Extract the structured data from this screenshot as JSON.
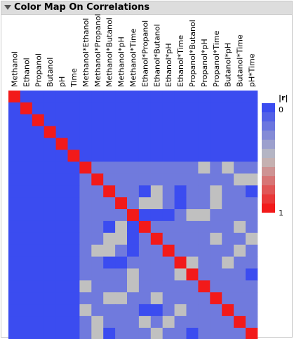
{
  "panel": {
    "title": "Color Map On Correlations"
  },
  "chart_data": {
    "type": "heatmap",
    "variables": [
      "Methanol",
      "Ethanol",
      "Propanol",
      "Butanol",
      "pH",
      "Time",
      "Methanol*Ethanol",
      "Methanol*Propanol",
      "Methanol*Butanol",
      "Methanol*pH",
      "Methanol*Time",
      "Ethanol*Propanol",
      "Ethanol*Butanol",
      "Ethanol*pH",
      "Ethanol*Time",
      "Propanol*Butanol",
      "Propanol*pH",
      "Propanol*Time",
      "Butanol*pH",
      "Butanol*Time",
      "pH*Time"
    ],
    "abs_r_matrix": [
      [
        1,
        0,
        0,
        0,
        0,
        0,
        0,
        0,
        0,
        0,
        0,
        0,
        0,
        0,
        0,
        0,
        0,
        0,
        0,
        0,
        0
      ],
      [
        0,
        1,
        0,
        0,
        0,
        0,
        0,
        0,
        0,
        0,
        0,
        0,
        0,
        0,
        0,
        0,
        0,
        0,
        0,
        0,
        0
      ],
      [
        0,
        0,
        1,
        0,
        0,
        0,
        0,
        0,
        0,
        0,
        0,
        0,
        0,
        0,
        0,
        0,
        0,
        0,
        0,
        0,
        0
      ],
      [
        0,
        0,
        0,
        1,
        0,
        0,
        0,
        0,
        0,
        0,
        0,
        0,
        0,
        0,
        0,
        0,
        0,
        0,
        0,
        0,
        0
      ],
      [
        0,
        0,
        0,
        0,
        1,
        0,
        0,
        0,
        0,
        0,
        0,
        0,
        0,
        0,
        0,
        0,
        0,
        0,
        0,
        0,
        0
      ],
      [
        0,
        0,
        0,
        0,
        0,
        1,
        0,
        0,
        0,
        0,
        0,
        0,
        0,
        0,
        0,
        0,
        0,
        0,
        0,
        0,
        0
      ],
      [
        0,
        0,
        0,
        0,
        0,
        0,
        1,
        0.2,
        0.2,
        0.2,
        0.2,
        0.2,
        0.2,
        0.2,
        0.2,
        0.2,
        0.5,
        0.2,
        0.5,
        0.2,
        0.2
      ],
      [
        0,
        0,
        0,
        0,
        0,
        0,
        0.2,
        1,
        0.2,
        0.2,
        0.2,
        0.2,
        0.2,
        0.2,
        0.2,
        0.2,
        0.2,
        0.2,
        0.2,
        0.5,
        0.5
      ],
      [
        0,
        0,
        0,
        0,
        0,
        0,
        0.2,
        0.2,
        1,
        0.2,
        0.2,
        0,
        0.5,
        0.2,
        0,
        0.2,
        0.2,
        0.5,
        0.2,
        0.2,
        0
      ],
      [
        0,
        0,
        0,
        0,
        0,
        0,
        0.2,
        0.2,
        0.2,
        1,
        0.2,
        0.5,
        0.5,
        0.2,
        0,
        0.2,
        0.2,
        0.5,
        0.2,
        0.2,
        0.2
      ],
      [
        0,
        0,
        0,
        0,
        0,
        0,
        0.2,
        0.2,
        0.2,
        0.2,
        1,
        0,
        0,
        0,
        0.2,
        0.5,
        0.5,
        0.2,
        0.2,
        0.2,
        0.2
      ],
      [
        0,
        0,
        0,
        0,
        0,
        0,
        0.2,
        0.2,
        0,
        0.5,
        0,
        1,
        0.2,
        0.2,
        0.2,
        0.2,
        0.2,
        0.2,
        0.2,
        0.5,
        0.2
      ],
      [
        0,
        0,
        0,
        0,
        0,
        0,
        0.2,
        0.2,
        0.5,
        0.5,
        0,
        0.2,
        1,
        0.2,
        0.2,
        0.2,
        0.2,
        0.5,
        0.2,
        0.2,
        0.5
      ],
      [
        0,
        0,
        0,
        0,
        0,
        0,
        0.2,
        0.5,
        0.5,
        0.2,
        0,
        0.2,
        0.2,
        1,
        0.2,
        0.2,
        0.2,
        0.2,
        0.2,
        0.5,
        0.2
      ],
      [
        0,
        0,
        0,
        0,
        0,
        0,
        0.2,
        0.2,
        0,
        0,
        0.2,
        0.2,
        0.2,
        0.2,
        1,
        0.5,
        0.2,
        0.2,
        0.5,
        0.2,
        0.2
      ],
      [
        0,
        0,
        0,
        0,
        0,
        0,
        0.2,
        0.2,
        0.2,
        0.2,
        0.5,
        0.2,
        0.2,
        0.2,
        0.5,
        1,
        0.2,
        0.2,
        0.2,
        0.2,
        0
      ],
      [
        0,
        0,
        0,
        0,
        0,
        0,
        0.5,
        0.2,
        0.2,
        0.2,
        0.5,
        0.2,
        0.2,
        0.2,
        0.2,
        0.2,
        1,
        0.2,
        0.2,
        0.2,
        0.2
      ],
      [
        0,
        0,
        0,
        0,
        0,
        0,
        0.2,
        0.2,
        0.5,
        0.5,
        0.2,
        0.2,
        0.5,
        0.2,
        0.2,
        0.2,
        0.2,
        1,
        0.2,
        0.2,
        0.2
      ],
      [
        0,
        0,
        0,
        0,
        0,
        0,
        0.5,
        0.2,
        0.2,
        0.2,
        0.2,
        0,
        0,
        0.2,
        0.5,
        0.2,
        0.2,
        0.2,
        1,
        0.2,
        0.2
      ],
      [
        0,
        0,
        0,
        0,
        0,
        0,
        0.2,
        0.5,
        0.2,
        0.2,
        0.2,
        0.5,
        0.2,
        0.5,
        0.2,
        0.2,
        0.2,
        0.2,
        0.2,
        1,
        0.2
      ],
      [
        0,
        0,
        0,
        0,
        0,
        0,
        0.2,
        0.5,
        0,
        0.2,
        0.2,
        0.2,
        0.5,
        0.2,
        0.2,
        0,
        0.2,
        0.2,
        0.2,
        0.2,
        1
      ]
    ],
    "legend": {
      "title": "|r|",
      "min_label": "0",
      "max_label": "1"
    },
    "color_low": "#3b4cf0",
    "color_mid": "#c0c0c0",
    "color_high": "#f21a1a"
  }
}
